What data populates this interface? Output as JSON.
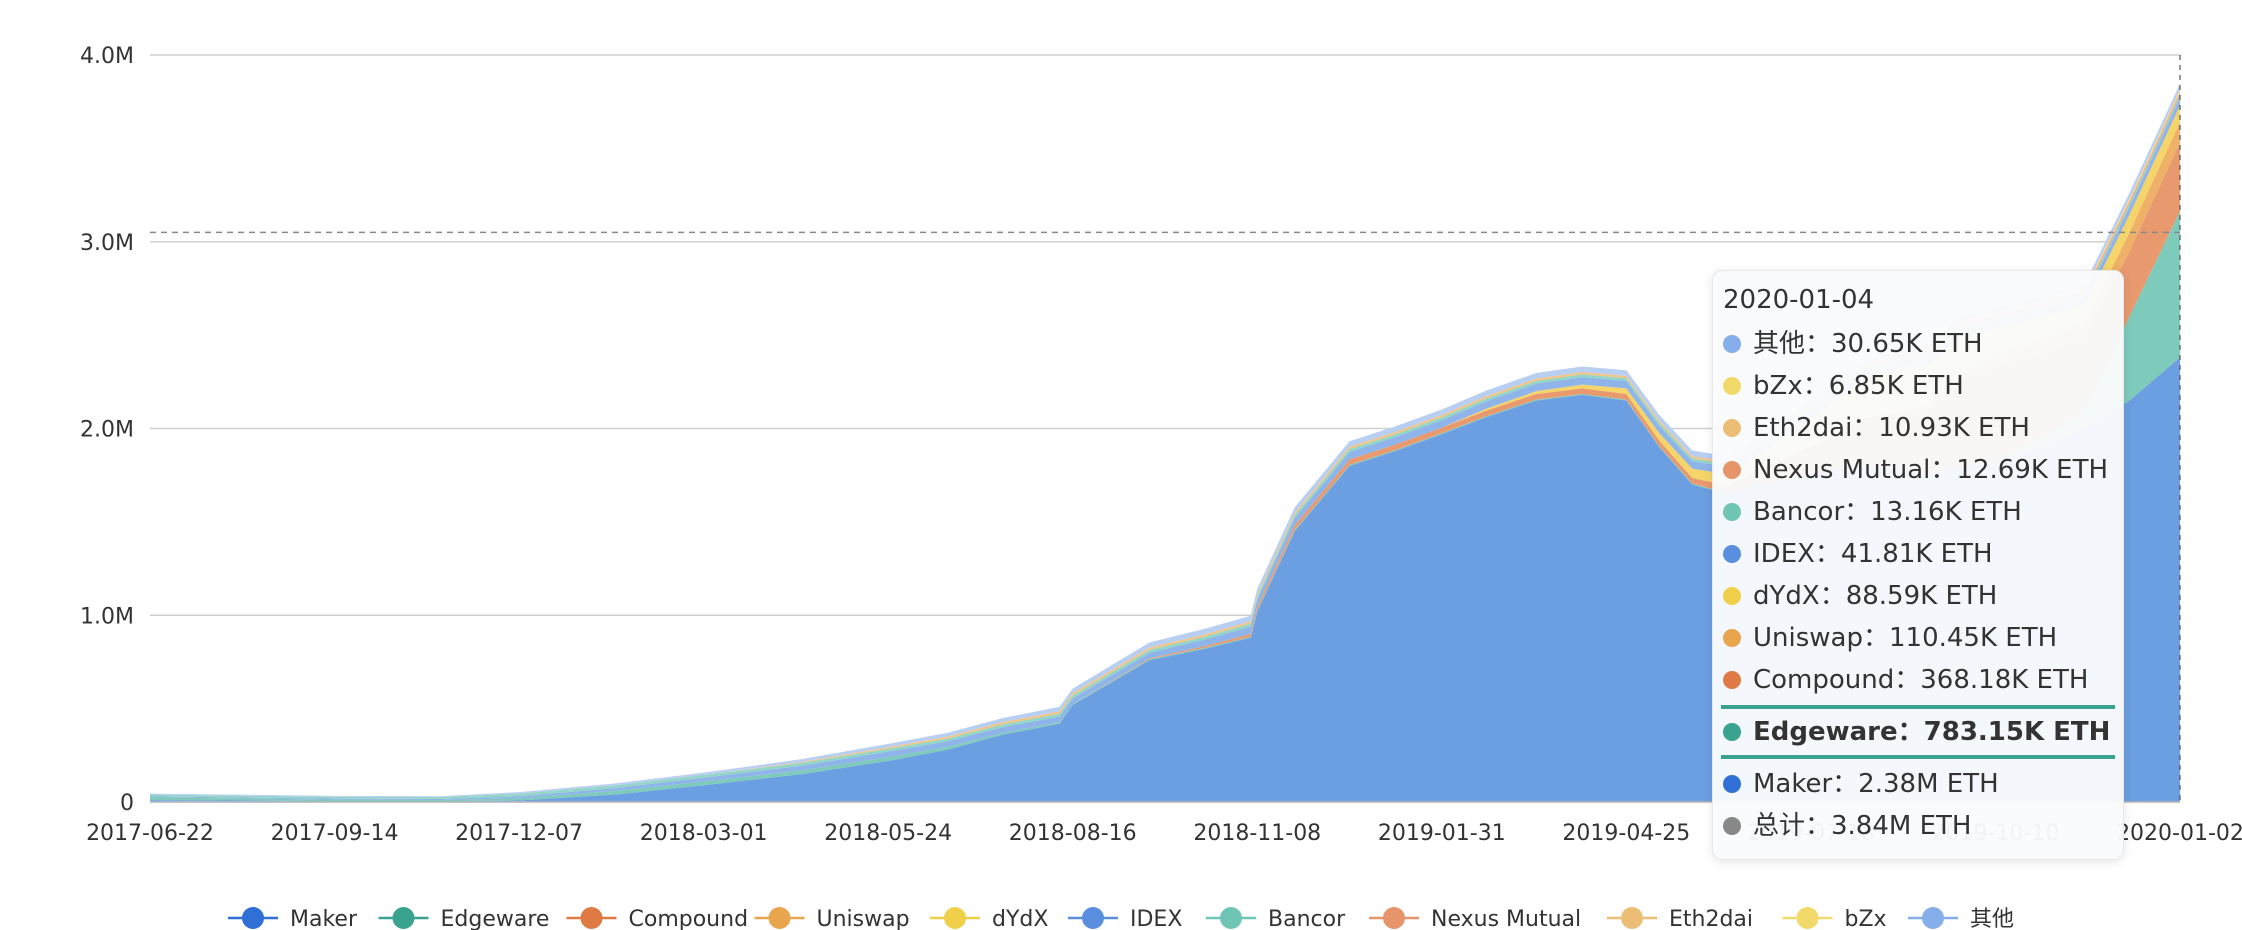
{
  "chart_data": {
    "type": "area",
    "stacked": true,
    "x_ticks": [
      "2017-06-22",
      "2017-09-14",
      "2017-12-07",
      "2018-03-01",
      "2018-05-24",
      "2018-08-16",
      "2018-11-08",
      "2019-01-31",
      "2019-04-25",
      "2019-07-18",
      "2019-10-10",
      "2020-01-02"
    ],
    "y_ticks": [
      "0",
      "1.0M",
      "2.0M",
      "3.0M",
      "4.0M"
    ],
    "ylim": [
      0,
      4000000
    ],
    "grid": true,
    "legend_position": "bottom",
    "dashed_reference": 3050000,
    "x": [
      "2017-06-22",
      "2017-09-14",
      "2017-11-01",
      "2017-12-07",
      "2018-01-20",
      "2018-03-01",
      "2018-04-15",
      "2018-05-24",
      "2018-06-20",
      "2018-07-15",
      "2018-08-10",
      "2018-08-16",
      "2018-09-20",
      "2018-10-15",
      "2018-11-05",
      "2018-11-08",
      "2018-11-25",
      "2018-12-20",
      "2019-01-10",
      "2019-01-31",
      "2019-02-20",
      "2019-03-15",
      "2019-04-05",
      "2019-04-25",
      "2019-05-10",
      "2019-05-25",
      "2019-06-10",
      "2019-06-25",
      "2019-07-18",
      "2019-08-10",
      "2019-08-28",
      "2019-09-10",
      "2019-09-25",
      "2019-10-10",
      "2019-11-01",
      "2019-11-20",
      "2019-12-10",
      "2020-01-02"
    ],
    "series": [
      {
        "name": "Maker",
        "color": "#6c9ee2",
        "values": [
          10000,
          5000,
          5000,
          8000,
          40000,
          90000,
          150000,
          220000,
          280000,
          360000,
          420000,
          520000,
          760000,
          820000,
          880000,
          1020000,
          1450000,
          1800000,
          1880000,
          1970000,
          2060000,
          2150000,
          2180000,
          2150000,
          1900000,
          1700000,
          1650000,
          1700000,
          1750000,
          1800000,
          1780000,
          1750000,
          1800000,
          1820000,
          1900000,
          2000000,
          2150000,
          2380000
        ]
      },
      {
        "name": "Edgeware",
        "color": "#7ecbbc",
        "values": [
          15000,
          8000,
          6000,
          12000,
          20000,
          20000,
          20000,
          20000,
          15000,
          10000,
          8000,
          5000,
          5000,
          5000,
          5000,
          5000,
          5000,
          5000,
          5000,
          5000,
          5000,
          5000,
          5000,
          5000,
          5000,
          5000,
          5000,
          5000,
          5000,
          5000,
          5000,
          5000,
          5000,
          5000,
          50000,
          100000,
          450000,
          783150
        ]
      },
      {
        "name": "Compound",
        "color": "#e89a6e",
        "values": [
          0,
          0,
          0,
          0,
          0,
          0,
          0,
          0,
          0,
          0,
          0,
          0,
          5000,
          10000,
          15000,
          20000,
          25000,
          30000,
          30000,
          30000,
          30000,
          30000,
          30000,
          30000,
          30000,
          30000,
          40000,
          80000,
          150000,
          250000,
          300000,
          350000,
          450000,
          500000,
          450000,
          380000,
          350000,
          368180
        ]
      },
      {
        "name": "Uniswap",
        "color": "#efb068",
        "values": [
          0,
          0,
          0,
          0,
          0,
          0,
          0,
          0,
          0,
          0,
          0,
          0,
          0,
          0,
          0,
          0,
          0,
          0,
          0,
          0,
          0,
          0,
          0,
          0,
          0,
          0,
          0,
          0,
          0,
          0,
          10000,
          20000,
          40000,
          60000,
          80000,
          90000,
          100000,
          110450
        ]
      },
      {
        "name": "dYdX",
        "color": "#f5d46a",
        "values": [
          0,
          0,
          0,
          0,
          0,
          0,
          0,
          0,
          0,
          0,
          0,
          0,
          0,
          0,
          0,
          0,
          0,
          0,
          0,
          0,
          10000,
          15000,
          20000,
          30000,
          40000,
          50000,
          60000,
          80000,
          150000,
          200000,
          230000,
          220000,
          200000,
          150000,
          120000,
          100000,
          95000,
          88590
        ]
      },
      {
        "name": "IDEX",
        "color": "#8fb4ea",
        "values": [
          5000,
          5000,
          5000,
          10000,
          15000,
          20000,
          25000,
          30000,
          30000,
          30000,
          30000,
          30000,
          30000,
          35000,
          40000,
          40000,
          40000,
          40000,
          40000,
          40000,
          40000,
          40000,
          40000,
          40000,
          40000,
          40000,
          40000,
          40000,
          40000,
          40000,
          40000,
          40000,
          40000,
          40000,
          40000,
          40000,
          42000,
          41810
        ]
      },
      {
        "name": "Bancor",
        "color": "#93d6c8",
        "values": [
          10000,
          10000,
          10000,
          15000,
          15000,
          15000,
          15000,
          15000,
          15000,
          15000,
          15000,
          15000,
          15000,
          15000,
          15000,
          15000,
          15000,
          15000,
          15000,
          15000,
          15000,
          15000,
          15000,
          15000,
          15000,
          15000,
          15000,
          15000,
          15000,
          15000,
          15000,
          15000,
          15000,
          15000,
          15000,
          14000,
          13500,
          13160
        ]
      },
      {
        "name": "Nexus Mutual",
        "color": "#eea57e",
        "values": [
          0,
          0,
          0,
          0,
          0,
          0,
          0,
          0,
          0,
          0,
          0,
          0,
          0,
          0,
          0,
          0,
          0,
          0,
          0,
          0,
          0,
          0,
          0,
          0,
          0,
          0,
          0,
          0,
          5000,
          8000,
          10000,
          10000,
          11000,
          12000,
          12000,
          12500,
          12600,
          12690
        ]
      },
      {
        "name": "Eth2dai",
        "color": "#f3c585",
        "values": [
          0,
          0,
          0,
          0,
          0,
          0,
          5000,
          8000,
          10000,
          12000,
          12000,
          12000,
          12000,
          12000,
          12000,
          12000,
          12000,
          12000,
          12000,
          12000,
          12000,
          12000,
          12000,
          12000,
          12000,
          12000,
          12000,
          12000,
          12000,
          12000,
          11500,
          11000,
          11000,
          11000,
          11000,
          11000,
          10950,
          10930
        ]
      },
      {
        "name": "bZx",
        "color": "#f7df8e",
        "values": [
          0,
          0,
          0,
          0,
          0,
          0,
          0,
          0,
          0,
          0,
          0,
          0,
          0,
          0,
          0,
          0,
          0,
          0,
          0,
          0,
          0,
          0,
          0,
          0,
          0,
          0,
          0,
          0,
          2000,
          4000,
          5000,
          5500,
          6000,
          6500,
          6800,
          6800,
          6850,
          6850
        ]
      },
      {
        "name": "其他",
        "color": "#b9cff2",
        "values": [
          5000,
          5000,
          5000,
          8000,
          10000,
          12000,
          15000,
          18000,
          20000,
          22000,
          25000,
          25000,
          28000,
          30000,
          30000,
          30000,
          30000,
          30000,
          30000,
          30000,
          30000,
          30000,
          30000,
          30000,
          30000,
          30000,
          30000,
          30000,
          30000,
          30000,
          30000,
          30000,
          30000,
          30000,
          30000,
          30500,
          30600,
          30650
        ]
      }
    ]
  },
  "legend": {
    "items": [
      {
        "label": "Maker",
        "color": "#2f6fd6"
      },
      {
        "label": "Edgeware",
        "color": "#3aa38f"
      },
      {
        "label": "Compound",
        "color": "#e07a45"
      },
      {
        "label": "Uniswap",
        "color": "#e8a54e"
      },
      {
        "label": "dYdX",
        "color": "#f0cf4a"
      },
      {
        "label": "IDEX",
        "color": "#5a8fe0"
      },
      {
        "label": "Bancor",
        "color": "#6ec5b4"
      },
      {
        "label": "Nexus Mutual",
        "color": "#e6946a"
      },
      {
        "label": "Eth2dai",
        "color": "#ecbd75"
      },
      {
        "label": "bZx",
        "color": "#f2da6a"
      },
      {
        "label": "其他",
        "color": "#86aeea"
      }
    ]
  },
  "tooltip": {
    "date": "2020-01-04",
    "rows": [
      {
        "text": "其他：30.65K ETH",
        "color": "#86aeea",
        "highlight": false
      },
      {
        "text": "bZx：6.85K ETH",
        "color": "#f2da6a",
        "highlight": false
      },
      {
        "text": "Eth2dai：10.93K ETH",
        "color": "#ecbd75",
        "highlight": false
      },
      {
        "text": "Nexus Mutual：12.69K ETH",
        "color": "#e6946a",
        "highlight": false
      },
      {
        "text": "Bancor：13.16K ETH",
        "color": "#6ec5b4",
        "highlight": false
      },
      {
        "text": "IDEX：41.81K ETH",
        "color": "#5a8fe0",
        "highlight": false
      },
      {
        "text": "dYdX：88.59K ETH",
        "color": "#f0cf4a",
        "highlight": false
      },
      {
        "text": "Uniswap：110.45K ETH",
        "color": "#e8a54e",
        "highlight": false
      },
      {
        "text": "Compound：368.18K ETH",
        "color": "#e07a45",
        "highlight": false
      },
      {
        "text": "Edgeware：783.15K ETH",
        "color": "#3aa38f",
        "highlight": true
      },
      {
        "text": "Maker：2.38M ETH",
        "color": "#2f6fd6",
        "highlight": false
      },
      {
        "text": "总计：3.84M ETH",
        "color": "#888888",
        "highlight": false
      }
    ]
  }
}
